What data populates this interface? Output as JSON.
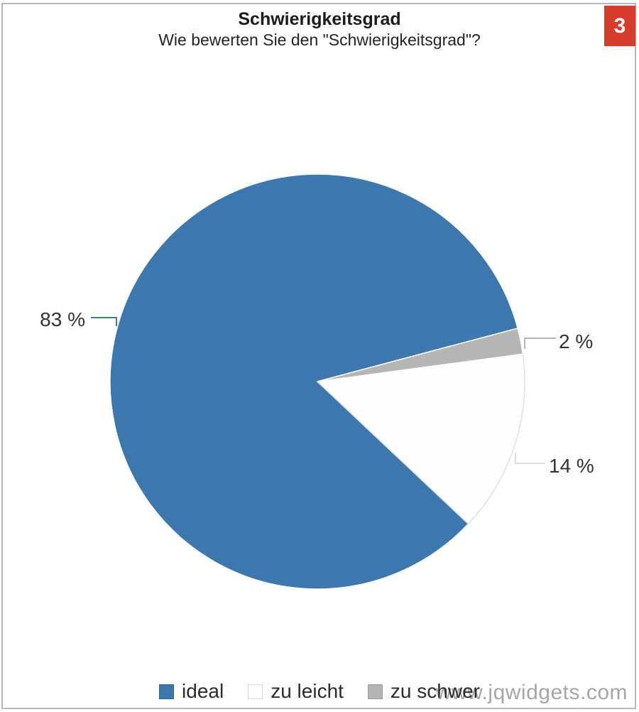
{
  "header": {
    "title": "Schwierigkeitsgrad",
    "subtitle": "Wie bewerten Sie den \"Schwierigkeitsgrad\"?",
    "badge": "3"
  },
  "chart_data": {
    "type": "pie",
    "title": "Schwierigkeitsgrad",
    "subtitle": "Wie bewerten Sie den \"Schwierigkeitsgrad\"?",
    "values_unit": "%",
    "slices": [
      {
        "label": "ideal",
        "value": 83,
        "display": "83 %",
        "color": "#3C77AD",
        "stroke": "#FFFFFF"
      },
      {
        "label": "zu leicht",
        "value": 14,
        "display": "14 %",
        "color": "#FEFEFE",
        "stroke": "#E0E0E0"
      },
      {
        "label": "zu schwer",
        "value": 2,
        "display": "2 %",
        "color": "#B5B5B5",
        "stroke": "#FFFFFF"
      }
    ],
    "start_angle_deg": 14.9,
    "direction": "counterclockwise",
    "legend_position": "bottom"
  },
  "colors": {
    "accent_blue": "#3C77AD",
    "slice_gray": "#B5B5B5",
    "badge_red": "#D63C2B",
    "leader_light": "#DEDEDE",
    "frame_border": "#B6B6B6"
  },
  "watermark": {
    "text": "www.jqwidgets.com"
  }
}
